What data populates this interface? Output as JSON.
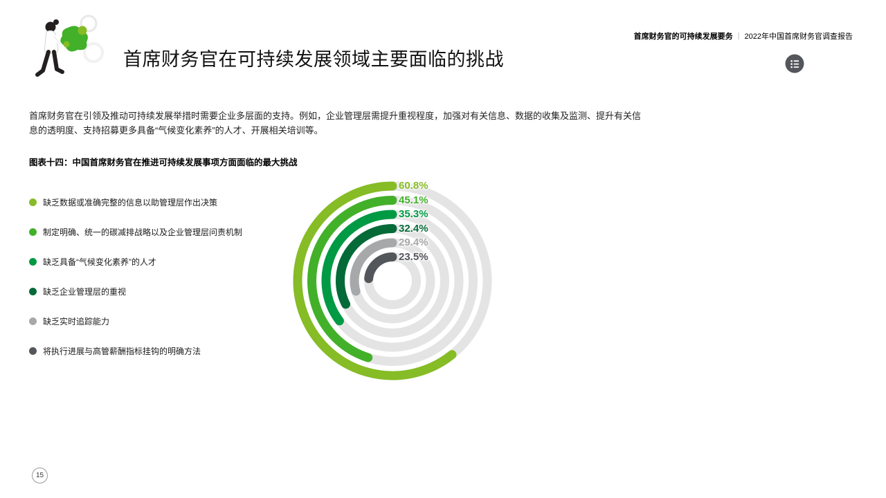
{
  "header": {
    "doc_title_bold": "首席财务官的可持续发展要务",
    "separator": "|",
    "doc_title_regular": "2022年中国首席财务官调查报告",
    "page_title": "首席财务官在可持续发展领域主要面临的挑战"
  },
  "intro_paragraph": "首席财务官在引领及推动可持续发展举措时需要企业多层面的支持。例如，企业管理层需提升重视程度，加强对有关信息、数据的收集及监测、提升有关信息的透明度、支持招募更多具备“气候变化素养”的人才、开展相关培训等。",
  "chart_caption": "图表十四：中国首席财务官在推进可持续发展事项方面面临的最大挑战",
  "chart_data": {
    "type": "radial-bar",
    "title": "中国首席财务官在推进可持续发展事项方面面临的最大挑战",
    "categories": [
      "缺乏数据或准确完整的信息以助管理层作出决策",
      "制定明确、统一的碳减排战略以及企业管理层问责机制",
      "缺乏具备“气候变化素养”的人才",
      "缺乏企业管理层的重视",
      "缺乏实时追踪能力",
      "将执行进展与高管薪酬指标挂钩的明确方法"
    ],
    "values": [
      60.8,
      45.1,
      35.3,
      32.4,
      29.4,
      23.5
    ],
    "value_labels": [
      "60.8%",
      "45.1%",
      "35.3%",
      "32.4%",
      "29.4%",
      "23.5%"
    ],
    "unit": "%",
    "max_value": 100,
    "colors": [
      "#86BC25",
      "#43B02A",
      "#009A44",
      "#046A38",
      "#A7A8AA",
      "#53565A"
    ],
    "track_color": "#E4E4E4",
    "start_angle": "12-o'clock",
    "direction": "counterclockwise",
    "legend_position": "left",
    "grid": false
  },
  "legend": {
    "items": [
      {
        "label": "缺乏数据或准确完整的信息以助管理层作出决策",
        "color": "#86BC25"
      },
      {
        "label": "制定明确、统一的碳减排战略以及企业管理层问责机制",
        "color": "#43B02A"
      },
      {
        "label": "缺乏具备“气候变化素养”的人才",
        "color": "#009A44"
      },
      {
        "label": "缺乏企业管理层的重视",
        "color": "#046A38"
      },
      {
        "label": "缺乏实时追踪能力",
        "color": "#A7A8AA"
      },
      {
        "label": "将执行进展与高管薪酬指标挂钩的明确方法",
        "color": "#53565A"
      }
    ]
  },
  "footer": {
    "page_number": "15"
  }
}
